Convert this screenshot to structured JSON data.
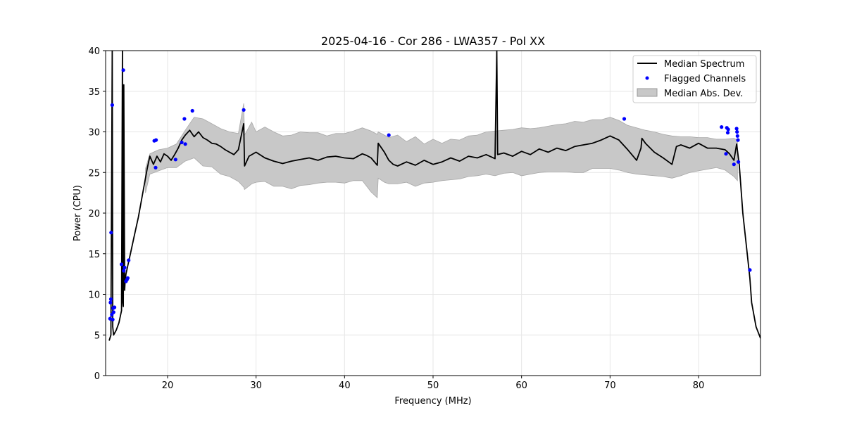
{
  "chart_data": {
    "type": "line",
    "title": "2025-04-16 - Cor 286 - LWA357 - Pol XX",
    "xlabel": "Frequency (MHz)",
    "ylabel": "Power (CPU)",
    "xlim": [
      13,
      87
    ],
    "ylim": [
      0,
      40
    ],
    "xticks": [
      20,
      30,
      40,
      50,
      60,
      70,
      80
    ],
    "yticks": [
      0,
      5,
      10,
      15,
      20,
      25,
      30,
      35,
      40
    ],
    "grid": true,
    "legend_position": "top-right",
    "series": [
      {
        "name": "Median Spectrum",
        "kind": "line",
        "color": "#000000",
        "x": [
          13.4,
          13.6,
          13.75,
          13.8,
          13.9,
          14.0,
          14.2,
          14.5,
          14.8,
          14.9,
          14.95,
          15.0,
          15.05,
          15.15,
          15.2,
          15.3,
          15.5,
          15.8,
          16.2,
          16.7,
          17.2,
          17.7,
          18.0,
          18.4,
          18.8,
          19.2,
          19.6,
          20.0,
          20.4,
          20.8,
          21.2,
          21.6,
          22.0,
          22.5,
          23.0,
          23.5,
          24.0,
          24.5,
          25.0,
          25.5,
          26.0,
          26.5,
          27.0,
          27.5,
          28.0,
          28.6,
          28.7,
          29.2,
          30.0,
          31.0,
          32.0,
          33.0,
          34.0,
          35.0,
          36.0,
          37.0,
          38.0,
          39.0,
          40.0,
          41.0,
          42.0,
          42.5,
          43.0,
          43.7,
          43.8,
          44.5,
          45.0,
          45.5,
          46.0,
          47.0,
          48.0,
          49.0,
          50.0,
          51.0,
          52.0,
          53.0,
          54.0,
          55.0,
          56.0,
          57.0,
          57.2,
          57.3,
          58.0,
          59.0,
          60.0,
          61.0,
          62.0,
          63.0,
          64.0,
          65.0,
          66.0,
          67.0,
          68.0,
          69.0,
          70.0,
          71.0,
          72.0,
          73.0,
          73.5,
          73.6,
          74.0,
          75.0,
          76.0,
          77.0,
          77.5,
          78.0,
          79.0,
          80.0,
          81.0,
          82.0,
          83.0,
          83.5,
          84.0,
          84.3,
          84.6,
          85.0,
          85.4,
          85.8,
          86.0,
          86.5,
          87.0
        ],
        "y": [
          4.3,
          5.0,
          40.0,
          6.0,
          5.0,
          5.2,
          5.6,
          6.5,
          8.0,
          40.0,
          9.0,
          8.5,
          35.8,
          10.5,
          11.5,
          12.5,
          13.5,
          15.0,
          17.0,
          19.5,
          22.5,
          25.5,
          27.0,
          26.0,
          27.0,
          26.3,
          27.3,
          27.0,
          26.5,
          27.2,
          28.0,
          29.0,
          29.6,
          30.2,
          29.4,
          30.0,
          29.3,
          29.0,
          28.6,
          28.5,
          28.2,
          27.8,
          27.5,
          27.2,
          27.8,
          31.0,
          25.8,
          27.0,
          27.5,
          26.8,
          26.4,
          26.1,
          26.4,
          26.6,
          26.8,
          26.5,
          26.9,
          27.0,
          26.8,
          26.7,
          27.3,
          27.1,
          26.8,
          25.9,
          28.6,
          27.5,
          26.5,
          26.0,
          25.8,
          26.3,
          25.9,
          26.5,
          26.0,
          26.3,
          26.8,
          26.4,
          27.0,
          26.8,
          27.2,
          26.7,
          40.0,
          27.2,
          27.4,
          27.0,
          27.6,
          27.2,
          27.9,
          27.5,
          28.0,
          27.7,
          28.2,
          28.4,
          28.6,
          29.0,
          29.5,
          29.0,
          27.8,
          26.5,
          28.0,
          29.2,
          28.6,
          27.5,
          26.8,
          26.0,
          28.2,
          28.4,
          28.0,
          28.6,
          28.0,
          28.0,
          27.8,
          27.3,
          26.5,
          28.5,
          26.0,
          20.0,
          16.0,
          12.0,
          9.0,
          6.0,
          4.6
        ]
      },
      {
        "name": "Flagged Channels",
        "kind": "scatter",
        "color": "#0000ff",
        "x": [
          13.5,
          13.55,
          13.6,
          13.62,
          13.7,
          13.75,
          13.8,
          13.85,
          13.9,
          14.0,
          14.8,
          15.0,
          15.05,
          15.15,
          15.3,
          15.4,
          15.5,
          15.6,
          18.5,
          18.65,
          18.7,
          20.9,
          21.6,
          21.9,
          22.0,
          22.8,
          28.6,
          45.0,
          71.6,
          82.6,
          83.1,
          83.2,
          83.3,
          83.35,
          84.0,
          84.3,
          84.35,
          84.4,
          84.45,
          84.5,
          85.8
        ],
        "y": [
          7.0,
          9.0,
          9.4,
          17.6,
          7.5,
          33.3,
          6.9,
          8.3,
          7.8,
          8.4,
          13.7,
          37.6,
          12.9,
          13.3,
          11.6,
          11.8,
          12.0,
          14.2,
          28.9,
          25.6,
          29.0,
          26.6,
          28.7,
          31.6,
          28.5,
          32.6,
          32.7,
          29.6,
          31.6,
          30.6,
          27.3,
          30.5,
          29.9,
          30.3,
          26.0,
          30.4,
          30.0,
          29.5,
          29.0,
          26.3,
          13.0
        ]
      },
      {
        "name": "Median Abs. Dev.",
        "kind": "band",
        "color": "#c8c8c8",
        "x": [
          17.5,
          18.0,
          19.0,
          20.0,
          21.0,
          22.0,
          23.0,
          24.0,
          25.0,
          26.0,
          27.0,
          28.0,
          28.6,
          28.7,
          29.5,
          30.0,
          31.0,
          32.0,
          33.0,
          34.0,
          35.0,
          36.0,
          37.0,
          38.0,
          39.0,
          40.0,
          41.0,
          42.0,
          43.0,
          43.7,
          43.8,
          44.5,
          45.0,
          46.0,
          47.0,
          48.0,
          49.0,
          50.0,
          51.0,
          52.0,
          53.0,
          54.0,
          55.0,
          56.0,
          57.0,
          58.0,
          59.0,
          60.0,
          61.0,
          62.0,
          63.0,
          64.0,
          65.0,
          66.0,
          67.0,
          68.0,
          69.0,
          70.0,
          71.0,
          72.0,
          73.0,
          74.0,
          75.0,
          76.0,
          77.0,
          78.0,
          79.0,
          80.0,
          81.0,
          82.0,
          83.0,
          84.0,
          84.4
        ],
        "upper": [
          25.5,
          27.3,
          27.8,
          28.0,
          28.5,
          30.2,
          31.8,
          31.6,
          31.0,
          30.4,
          30.0,
          29.8,
          33.5,
          29.6,
          31.2,
          30.0,
          30.6,
          30.0,
          29.5,
          29.6,
          30.0,
          29.9,
          29.9,
          29.5,
          29.8,
          29.8,
          30.1,
          30.5,
          30.1,
          29.7,
          30.0,
          29.6,
          29.3,
          29.6,
          28.8,
          29.4,
          28.5,
          29.1,
          28.6,
          29.1,
          29.0,
          29.5,
          29.6,
          30.0,
          30.1,
          30.2,
          30.3,
          30.5,
          30.4,
          30.5,
          30.7,
          30.9,
          31.0,
          31.3,
          31.2,
          31.5,
          31.5,
          31.8,
          31.4,
          30.8,
          30.5,
          30.2,
          30.0,
          29.7,
          29.5,
          29.4,
          29.4,
          29.3,
          29.3,
          29.1,
          29.1,
          29.2,
          29.0
        ],
        "lower": [
          22.5,
          24.8,
          25.2,
          25.6,
          25.6,
          26.4,
          26.8,
          25.8,
          25.7,
          24.8,
          24.5,
          23.9,
          23.2,
          22.9,
          23.6,
          23.8,
          23.9,
          23.3,
          23.3,
          23.0,
          23.4,
          23.5,
          23.7,
          23.8,
          23.8,
          23.7,
          24.0,
          24.0,
          22.6,
          21.9,
          24.3,
          23.8,
          23.6,
          23.6,
          23.8,
          23.3,
          23.7,
          23.8,
          24.0,
          24.1,
          24.2,
          24.5,
          24.6,
          24.8,
          24.6,
          24.9,
          25.0,
          24.6,
          24.8,
          25.0,
          25.1,
          25.1,
          25.1,
          25.0,
          25.0,
          25.5,
          25.5,
          25.5,
          25.3,
          25.0,
          24.8,
          24.7,
          24.6,
          24.5,
          24.3,
          24.6,
          25.0,
          25.2,
          25.4,
          25.6,
          25.3,
          24.5,
          24.0
        ]
      }
    ]
  }
}
